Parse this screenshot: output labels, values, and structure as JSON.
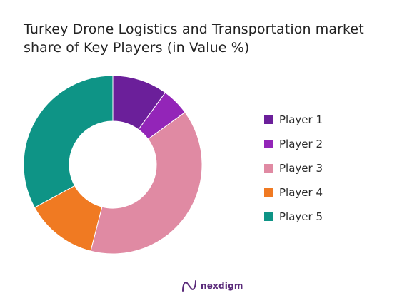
{
  "title": "Turkey Drone Logistics and Transportation market share of Key Players (in Value %)",
  "brand": "nexdigm",
  "chart_data": {
    "type": "pie",
    "variant": "donut",
    "title": "Turkey Drone Logistics and Transportation market share of Key Players (in Value %)",
    "legend_position": "right",
    "categories": [
      "Player 1",
      "Player 2",
      "Player 3",
      "Player 4",
      "Player 5"
    ],
    "values": [
      10,
      5,
      39,
      13,
      33
    ],
    "colors": [
      "#6b1f9a",
      "#9325b8",
      "#e08aa3",
      "#f07a22",
      "#0e9486"
    ]
  }
}
